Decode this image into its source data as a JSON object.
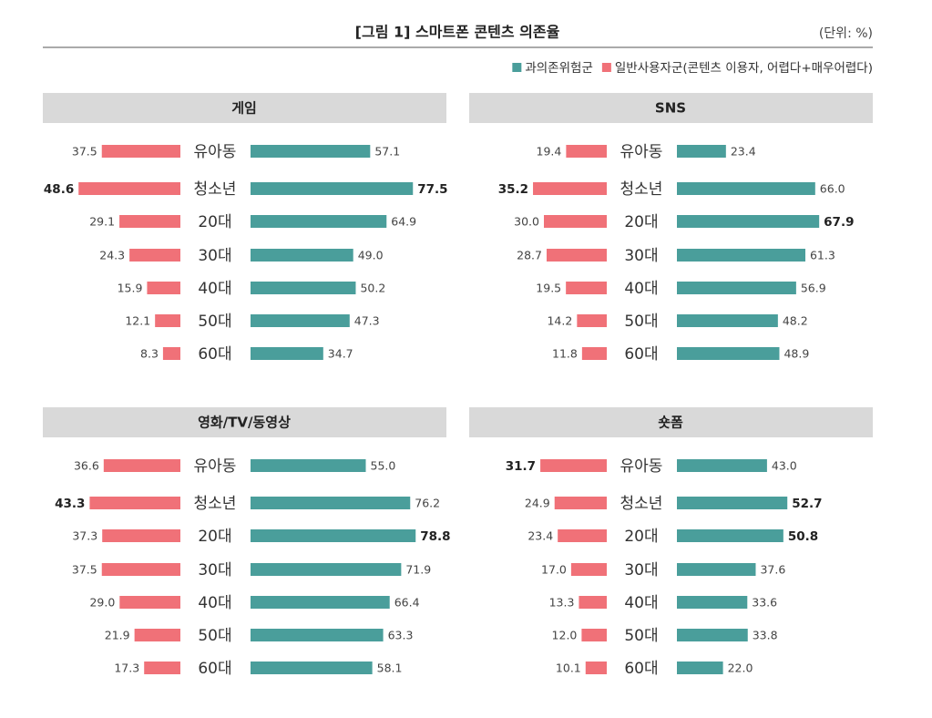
{
  "title": "[그림 1] 스마트폰 콘텐츠 의존율",
  "unit": "(단위: %)",
  "chart_data": [
    {
      "type": "butterfly",
      "title": "게임",
      "categories": [
        "유아동",
        "청소년",
        "20대",
        "30대",
        "40대",
        "50대",
        "60대"
      ],
      "series": [
        {
          "name": "과의존위험군",
          "color": "#4a9e9b",
          "values": [
            57.1,
            77.5,
            64.9,
            49.0,
            50.2,
            47.3,
            34.7
          ],
          "value_labels": [
            "57.1",
            "77.5",
            "64.9",
            "49.0",
            "50.2",
            "47.3",
            "34.7"
          ],
          "bold": [
            1
          ]
        },
        {
          "name": "일반사용자군(콘텐츠 이용자, 어렵다+매우어렵다)",
          "color": "#f07178",
          "values": [
            37.5,
            48.6,
            29.1,
            24.3,
            15.9,
            12.1,
            8.3
          ],
          "value_labels": [
            "37.5",
            "48.6",
            "29.1",
            "24.3",
            "15.9",
            "12.1",
            "8.3"
          ],
          "bold": [
            1
          ]
        }
      ]
    },
    {
      "type": "butterfly",
      "title": "SNS",
      "categories": [
        "유아동",
        "청소년",
        "20대",
        "30대",
        "40대",
        "50대",
        "60대"
      ],
      "series": [
        {
          "name": "과의존위험군",
          "color": "#4a9e9b",
          "values": [
            23.4,
            66.0,
            67.9,
            61.3,
            56.9,
            48.2,
            48.9
          ],
          "value_labels": [
            "23.4",
            "66.0",
            "67.9",
            "61.3",
            "56.9",
            "48.2",
            "48.9"
          ],
          "bold": [
            2
          ]
        },
        {
          "name": "일반사용자군(콘텐츠 이용자, 어렵다+매우어렵다)",
          "color": "#f07178",
          "values": [
            19.4,
            35.2,
            30.0,
            28.7,
            19.5,
            14.2,
            11.8
          ],
          "value_labels": [
            "19.4",
            "35.2",
            "30.0",
            "28.7",
            "19.5",
            "14.2",
            "11.8"
          ],
          "bold": [
            1
          ]
        }
      ]
    },
    {
      "type": "butterfly",
      "title": "영화/TV/동영상",
      "categories": [
        "유아동",
        "청소년",
        "20대",
        "30대",
        "40대",
        "50대",
        "60대"
      ],
      "series": [
        {
          "name": "과의존위험군",
          "color": "#4a9e9b",
          "values": [
            55.0,
            76.2,
            78.8,
            71.9,
            66.4,
            63.3,
            58.1
          ],
          "value_labels": [
            "55.0",
            "76.2",
            "78.8",
            "71.9",
            "66.4",
            "63.3",
            "58.1"
          ],
          "bold": [
            2
          ]
        },
        {
          "name": "일반사용자군(콘텐츠 이용자, 어렵다+매우어렵다)",
          "color": "#f07178",
          "values": [
            36.6,
            43.3,
            37.3,
            37.5,
            29.0,
            21.9,
            17.3
          ],
          "value_labels": [
            "36.6",
            "43.3",
            "37.3",
            "37.5",
            "29.0",
            "21.9",
            "17.3"
          ],
          "bold": [
            1
          ]
        }
      ]
    },
    {
      "type": "butterfly",
      "title": "숏폼",
      "categories": [
        "유아동",
        "청소년",
        "20대",
        "30대",
        "40대",
        "50대",
        "60대"
      ],
      "series": [
        {
          "name": "과의존위험군",
          "color": "#4a9e9b",
          "values": [
            43.0,
            52.7,
            50.8,
            37.6,
            33.6,
            33.8,
            22.0
          ],
          "value_labels": [
            "43.0",
            "52.7",
            "50.8",
            "37.6",
            "33.6",
            "33.8",
            "22.0"
          ],
          "bold": [
            1,
            2
          ]
        },
        {
          "name": "일반사용자군(콘텐츠 이용자, 어렵다+매우어렵다)",
          "color": "#f07178",
          "values": [
            31.7,
            24.9,
            23.4,
            17.0,
            13.3,
            12.0,
            10.1
          ],
          "value_labels": [
            "31.7",
            "24.9",
            "23.4",
            "17.0",
            "13.3",
            "12.0",
            "10.1"
          ],
          "bold": [
            0
          ]
        }
      ]
    }
  ]
}
